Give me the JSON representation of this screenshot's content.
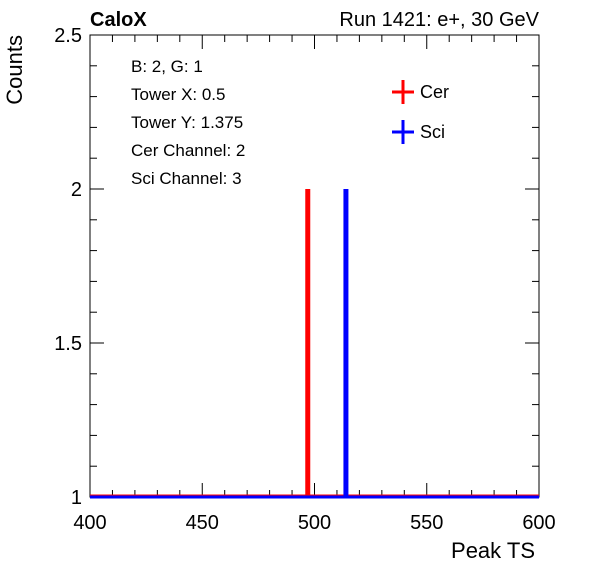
{
  "chart_data": {
    "type": "histogram",
    "title_left": "CaloX",
    "title_right": "Run 1421: e+, 30 GeV",
    "xlabel": "Peak TS",
    "ylabel": "Counts",
    "xlim": [
      400,
      600
    ],
    "ylim": [
      1,
      2.5
    ],
    "x_ticks": [
      400,
      450,
      500,
      550,
      600
    ],
    "x_tick_labels": [
      "400",
      "450",
      "500",
      "550",
      "600"
    ],
    "y_ticks": [
      1,
      1.5,
      2,
      2.5
    ],
    "y_tick_labels": [
      "1",
      "1.5",
      "2",
      "2.5"
    ],
    "grid": false,
    "info_lines": [
      "B: 2, G: 1",
      "Tower X: 0.5",
      "Tower Y: 1.375",
      "Cer Channel: 2",
      "Sci Channel: 3"
    ],
    "legend_position": "top-right",
    "series": [
      {
        "name": "Cer",
        "color": "#ff0000",
        "baseline": 1,
        "peaks": [
          {
            "x": 497,
            "y": 2
          }
        ]
      },
      {
        "name": "Sci",
        "color": "#0000ff",
        "baseline": 1,
        "peaks": [
          {
            "x": 514,
            "y": 2
          }
        ]
      }
    ]
  }
}
